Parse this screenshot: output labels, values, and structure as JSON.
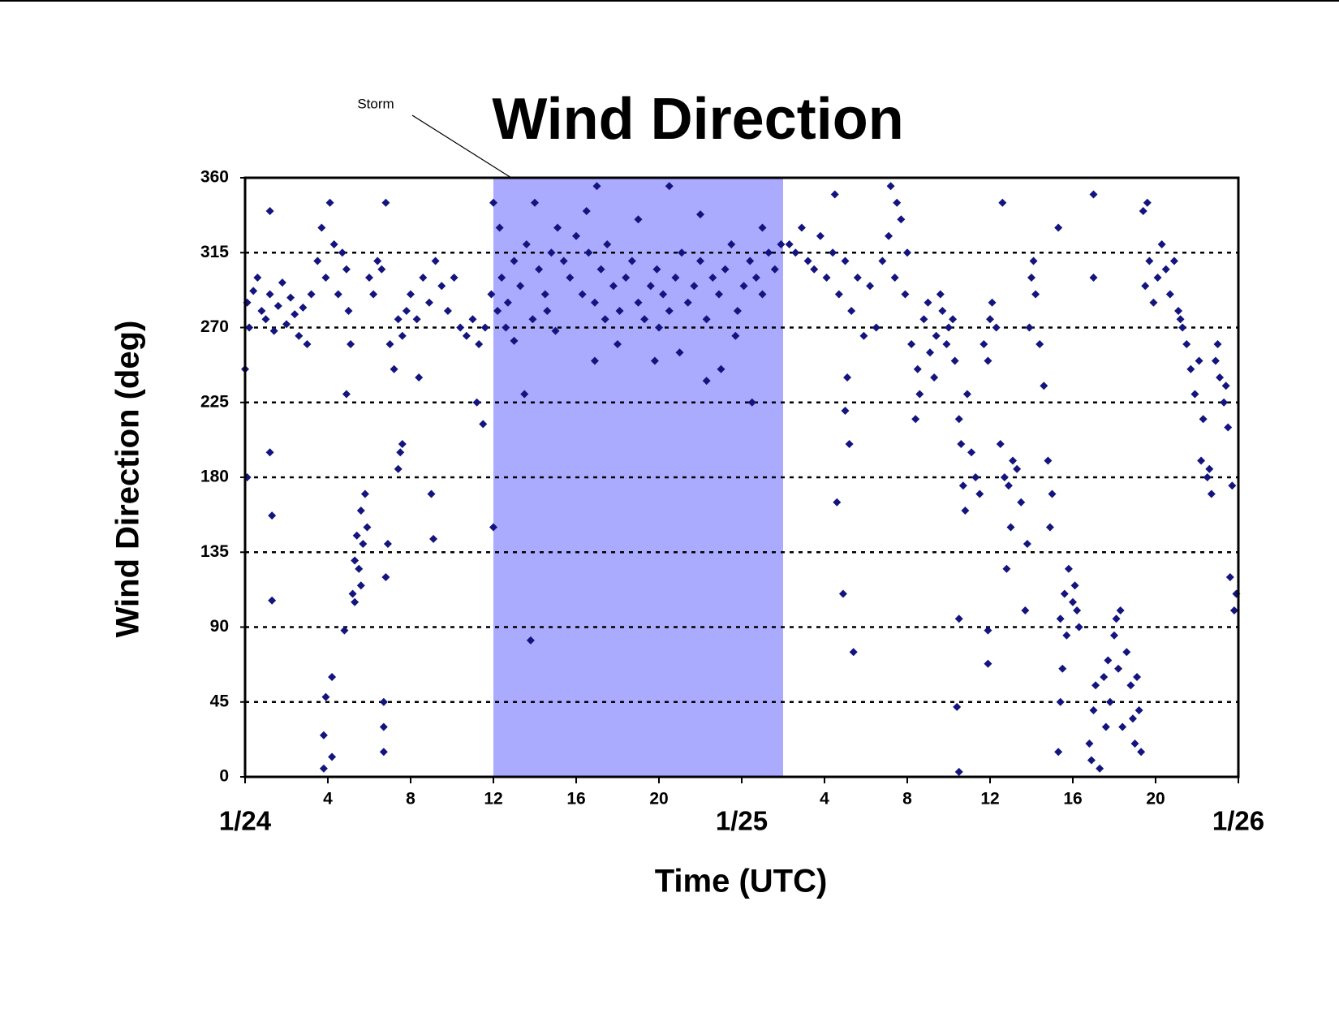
{
  "chart_data": {
    "type": "scatter",
    "title": "Wind Direction",
    "xlabel": "Time (UTC)",
    "ylabel": "Wind Direction (deg)",
    "highlight": {
      "label": "Storm",
      "x": [
        12,
        26
      ],
      "color": "#aaaaff"
    },
    "color": "#14147f",
    "xlim": [
      0,
      48
    ],
    "ylim": [
      0,
      360
    ],
    "xticks": [
      {
        "value": 0,
        "label": "1/24"
      },
      4,
      8,
      12,
      16,
      20,
      {
        "value": 24,
        "label": "1/25"
      },
      {
        "value": 28,
        "label": "4"
      },
      {
        "value": 32,
        "label": "8"
      },
      {
        "value": 36,
        "label": "12"
      },
      {
        "value": 40,
        "label": "16"
      },
      {
        "value": 44,
        "label": "20"
      },
      {
        "value": 48,
        "label": "1/26"
      }
    ],
    "yticks": [
      0,
      45,
      90,
      135,
      180,
      225,
      270,
      315,
      360
    ],
    "grid": true,
    "x": [
      0.1,
      0.2,
      0.4,
      0.6,
      0.8,
      1.0,
      1.2,
      1.4,
      1.6,
      1.8,
      2.0,
      2.2,
      2.4,
      2.6,
      2.8,
      3.0,
      3.2,
      0.0,
      0.1,
      1.2,
      1.3,
      1.3,
      1.2,
      3.5,
      3.7,
      3.9,
      4.1,
      4.3,
      4.5,
      4.7,
      4.9,
      5.0,
      3.8,
      3.8,
      3.9,
      4.2,
      4.2,
      4.8,
      4.9,
      5.1,
      5.2,
      5.3,
      5.4,
      5.5,
      5.6,
      5.7,
      5.8,
      5.9,
      5.6,
      5.3,
      6.0,
      6.2,
      6.4,
      6.6,
      6.8,
      6.7,
      6.7,
      6.7,
      6.8,
      6.9,
      7.0,
      7.2,
      7.4,
      7.6,
      7.8,
      7.4,
      7.5,
      7.6,
      8.0,
      8.3,
      8.6,
      8.9,
      9.2,
      9.5,
      9.8,
      10.1,
      10.4,
      10.7,
      11.0,
      11.3,
      11.6,
      11.9,
      9.0,
      9.1,
      8.4,
      11.2,
      11.5,
      12.0,
      12.0,
      12.2,
      12.4,
      12.7,
      13.0,
      13.3,
      13.6,
      13.9,
      14.2,
      14.5,
      14.8,
      15.1,
      15.4,
      15.7,
      16.0,
      16.3,
      16.6,
      16.9,
      17.2,
      17.5,
      17.8,
      18.1,
      18.4,
      18.7,
      19.0,
      19.3,
      19.6,
      19.9,
      20.2,
      20.5,
      20.8,
      21.1,
      21.4,
      21.7,
      22.0,
      22.3,
      22.6,
      22.9,
      23.2,
      23.5,
      23.8,
      24.1,
      24.4,
      24.7,
      25.0,
      25.3,
      25.6,
      25.9,
      13.8,
      13.5,
      16.9,
      20.5,
      17.0,
      19.8,
      22.3,
      23.0,
      24.5,
      13.0,
      15.0,
      18.0,
      21.0,
      12.6,
      14.0,
      16.5,
      19.0,
      22.0,
      25.0,
      12.3,
      14.6,
      17.4,
      20.0,
      23.7,
      26.3,
      26.6,
      26.9,
      27.2,
      27.5,
      27.8,
      28.1,
      28.4,
      28.7,
      29.0,
      29.3,
      29.6,
      29.9,
      30.2,
      30.5,
      28.5,
      28.6,
      28.9,
      29.1,
      29.2,
      29.4,
      29.0,
      30.8,
      31.1,
      31.4,
      31.7,
      32.0,
      31.2,
      31.5,
      31.9,
      32.2,
      32.5,
      32.8,
      33.1,
      33.4,
      33.7,
      34.0,
      34.3,
      32.4,
      32.6,
      33.0,
      33.3,
      33.6,
      33.9,
      34.2,
      34.5,
      34.6,
      34.7,
      34.8,
      34.5,
      34.4,
      34.5,
      34.9,
      35.1,
      35.3,
      35.5,
      35.7,
      35.9,
      36.0,
      35.9,
      35.9,
      36.1,
      36.3,
      36.5,
      36.7,
      36.9,
      37.1,
      37.3,
      37.5,
      36.8,
      36.6,
      37.0,
      37.9,
      38.0,
      38.2,
      38.4,
      38.6,
      38.8,
      39.0,
      38.1,
      37.7,
      37.8,
      38.9,
      39.3,
      39.4,
      39.6,
      39.8,
      40.0,
      40.2,
      39.7,
      39.5,
      39.4,
      40.1,
      40.3,
      39.3,
      40.8,
      40.9,
      41.0,
      41.1,
      41.3,
      41.5,
      41.6,
      41.7,
      41.0,
      41.0,
      41.8,
      42.0,
      42.2,
      42.4,
      42.6,
      42.8,
      43.0,
      43.2,
      42.1,
      42.3,
      42.9,
      43.1,
      43.3,
      43.5,
      43.7,
      43.9,
      44.1,
      44.3,
      44.5,
      44.7,
      44.9,
      43.6,
      43.4,
      45.1,
      45.3,
      45.5,
      45.7,
      45.9,
      46.1,
      46.3,
      46.5,
      46.7,
      46.9,
      47.1,
      47.3,
      47.5,
      47.7,
      47.9,
      47.6,
      47.8,
      46.6,
      47.0,
      47.4,
      45.2,
      46.2
    ],
    "values": [
      285,
      270,
      292,
      300,
      280,
      275,
      290,
      268,
      283,
      297,
      272,
      288,
      278,
      265,
      282,
      260,
      290,
      245,
      180,
      195,
      157,
      106,
      340,
      310,
      330,
      300,
      345,
      320,
      290,
      315,
      305,
      280,
      5,
      25,
      48,
      60,
      12,
      88,
      230,
      260,
      110,
      130,
      145,
      125,
      160,
      140,
      170,
      150,
      115,
      105,
      300,
      290,
      310,
      305,
      345,
      15,
      30,
      45,
      120,
      140,
      260,
      245,
      275,
      265,
      280,
      185,
      195,
      200,
      290,
      275,
      300,
      285,
      310,
      295,
      280,
      300,
      270,
      265,
      275,
      260,
      270,
      290,
      170,
      143,
      240,
      225,
      212,
      150,
      345,
      280,
      300,
      285,
      310,
      295,
      320,
      275,
      305,
      290,
      315,
      330,
      310,
      300,
      325,
      290,
      315,
      285,
      305,
      320,
      295,
      280,
      300,
      310,
      285,
      275,
      295,
      305,
      290,
      280,
      300,
      315,
      285,
      295,
      310,
      275,
      300,
      290,
      305,
      320,
      280,
      295,
      310,
      300,
      290,
      315,
      305,
      320,
      82,
      230,
      250,
      355,
      355,
      250,
      238,
      245,
      225,
      262,
      268,
      260,
      255,
      270,
      345,
      340,
      335,
      338,
      330,
      330,
      280,
      275,
      270,
      265,
      320,
      315,
      330,
      310,
      305,
      325,
      300,
      315,
      290,
      310,
      280,
      300,
      265,
      295,
      270,
      350,
      165,
      110,
      240,
      200,
      75,
      220,
      310,
      325,
      300,
      335,
      315,
      355,
      345,
      290,
      260,
      245,
      275,
      255,
      265,
      280,
      270,
      250,
      215,
      230,
      285,
      240,
      290,
      260,
      275,
      215,
      200,
      175,
      160,
      95,
      42,
      3,
      230,
      195,
      180,
      170,
      260,
      250,
      275,
      88,
      68,
      285,
      270,
      200,
      180,
      175,
      190,
      185,
      165,
      125,
      345,
      150,
      270,
      300,
      290,
      260,
      235,
      190,
      170,
      310,
      100,
      140,
      150,
      330,
      95,
      110,
      125,
      105,
      100,
      85,
      65,
      45,
      115,
      90,
      15,
      20,
      10,
      40,
      55,
      5,
      60,
      30,
      70,
      300,
      350,
      45,
      85,
      65,
      30,
      75,
      55,
      20,
      40,
      95,
      100,
      35,
      60,
      15,
      295,
      310,
      285,
      300,
      320,
      305,
      290,
      310,
      345,
      340,
      280,
      270,
      260,
      245,
      230,
      250,
      215,
      180,
      170,
      250,
      240,
      225,
      210,
      175,
      110,
      120,
      100,
      185,
      260,
      235,
      275,
      190
    ]
  }
}
